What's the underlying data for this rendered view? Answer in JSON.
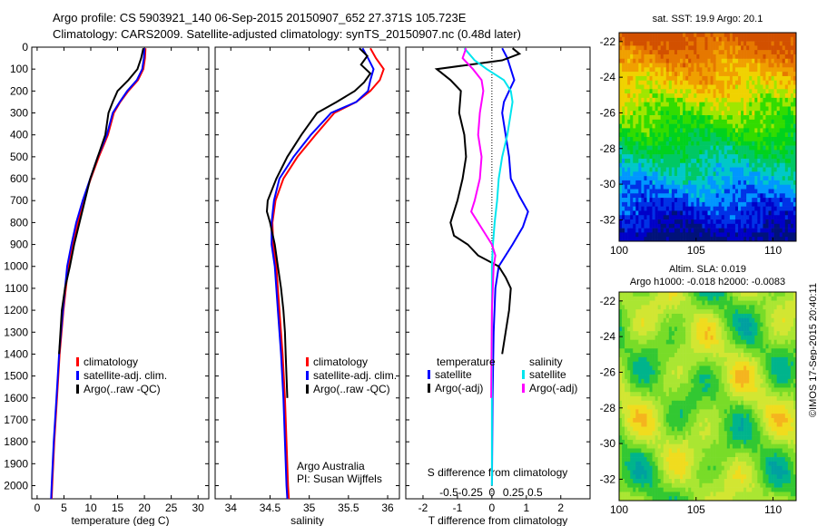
{
  "header": {
    "line1": "Argo profile: CS 5903921_140 06-Sep-2015 20150907_652 27.371S 105.723E",
    "line2": "Climatology: CARS2009. Satellite-adjusted climatology: synTS_20150907.nc (0.48d later)"
  },
  "credit": "©IMOS 17-Sep-2015 20:40:11",
  "colors": {
    "climatology": "#ff0000",
    "satellite": "#0000ff",
    "argo": "#000000",
    "sat_salt": "#00e5ee",
    "argo_salt": "#ff00ff"
  },
  "depth_axis": {
    "ticks": [
      0,
      100,
      200,
      300,
      400,
      500,
      600,
      700,
      800,
      900,
      1000,
      1100,
      1200,
      1300,
      1400,
      1500,
      1600,
      1700,
      1800,
      1900,
      2000
    ],
    "ylim": [
      0,
      2060
    ]
  },
  "chart_data": [
    {
      "type": "line",
      "id": "temp",
      "xlabel": "temperature (deg C)",
      "xticks": [
        "0",
        "5",
        "10",
        "15",
        "20",
        "25",
        "30"
      ],
      "xtick_values": [
        0,
        5,
        10,
        15,
        20,
        25,
        30
      ],
      "xlim": [
        -1,
        32
      ],
      "legend": [
        "climatology",
        "satellite-adj. clim.",
        "Argo(..raw -QC)"
      ],
      "series": [
        {
          "name": "climatology",
          "color": "#ff0000",
          "points": [
            [
              20.2,
              5
            ],
            [
              20.1,
              50
            ],
            [
              19.8,
              100
            ],
            [
              18.8,
              150
            ],
            [
              17,
              200
            ],
            [
              15.5,
              250
            ],
            [
              14.3,
              300
            ],
            [
              13.2,
              400
            ],
            [
              11.5,
              500
            ],
            [
              10,
              600
            ],
            [
              8.6,
              700
            ],
            [
              7.6,
              800
            ],
            [
              6.7,
              900
            ],
            [
              5.8,
              1000
            ],
            [
              4.9,
              1200
            ],
            [
              4.2,
              1400
            ],
            [
              3.7,
              1600
            ],
            [
              3.2,
              1800
            ],
            [
              2.8,
              2000
            ],
            [
              2.7,
              2060
            ]
          ]
        },
        {
          "name": "satellite-adj. clim.",
          "color": "#0000ff",
          "points": [
            [
              20,
              5
            ],
            [
              19.9,
              50
            ],
            [
              19.6,
              100
            ],
            [
              18.6,
              150
            ],
            [
              16.8,
              200
            ],
            [
              15.4,
              250
            ],
            [
              14.1,
              300
            ],
            [
              13,
              400
            ],
            [
              11.3,
              500
            ],
            [
              9.9,
              600
            ],
            [
              8.5,
              700
            ],
            [
              7.3,
              800
            ],
            [
              6.4,
              900
            ],
            [
              5.6,
              1000
            ],
            [
              4.8,
              1200
            ],
            [
              4.1,
              1400
            ],
            [
              3.6,
              1600
            ],
            [
              3.1,
              1800
            ],
            [
              2.7,
              2000
            ],
            [
              2.6,
              2060
            ]
          ]
        },
        {
          "name": "Argo(..raw -QC)",
          "color": "#000000",
          "points": [
            [
              19.8,
              5
            ],
            [
              19.4,
              50
            ],
            [
              18.7,
              100
            ],
            [
              17,
              150
            ],
            [
              15,
              200
            ],
            [
              14.1,
              250
            ],
            [
              13.3,
              300
            ],
            [
              12.7,
              400
            ],
            [
              11.3,
              500
            ],
            [
              9.9,
              600
            ],
            [
              8.9,
              700
            ],
            [
              7.9,
              800
            ],
            [
              6.9,
              900
            ],
            [
              6.1,
              1000
            ],
            [
              5.2,
              1100
            ],
            [
              4.6,
              1200
            ],
            [
              4.1,
              1400
            ]
          ]
        }
      ]
    },
    {
      "type": "line",
      "id": "salt",
      "xlabel": "salinity",
      "xticks": [
        "34",
        "34.5",
        "35",
        "35.5",
        "36"
      ],
      "xtick_values": [
        34,
        34.5,
        35,
        35.5,
        36
      ],
      "xlim": [
        33.8,
        36.15
      ],
      "legend": [
        "climatology",
        "satellite-adj. clim.",
        "Argo(..raw -QC)"
      ],
      "note": [
        "Argo Australia",
        "PI: Susan Wijffels"
      ],
      "series": [
        {
          "name": "climatology",
          "color": "#ff0000",
          "points": [
            [
              35.78,
              5
            ],
            [
              35.85,
              50
            ],
            [
              35.95,
              100
            ],
            [
              35.9,
              150
            ],
            [
              35.78,
              200
            ],
            [
              35.6,
              250
            ],
            [
              35.32,
              300
            ],
            [
              35.08,
              400
            ],
            [
              34.85,
              500
            ],
            [
              34.67,
              600
            ],
            [
              34.57,
              700
            ],
            [
              34.53,
              800
            ],
            [
              34.54,
              900
            ],
            [
              34.58,
              1000
            ],
            [
              34.62,
              1200
            ],
            [
              34.66,
              1400
            ],
            [
              34.69,
              1600
            ],
            [
              34.71,
              1800
            ],
            [
              34.73,
              2000
            ],
            [
              34.74,
              2060
            ]
          ]
        },
        {
          "name": "satellite-adj. clim.",
          "color": "#0000ff",
          "points": [
            [
              35.68,
              5
            ],
            [
              35.75,
              50
            ],
            [
              35.82,
              100
            ],
            [
              35.78,
              150
            ],
            [
              35.75,
              200
            ],
            [
              35.6,
              250
            ],
            [
              35.28,
              300
            ],
            [
              35.02,
              400
            ],
            [
              34.8,
              500
            ],
            [
              34.62,
              600
            ],
            [
              34.55,
              700
            ],
            [
              34.52,
              800
            ],
            [
              34.52,
              900
            ],
            [
              34.56,
              1000
            ],
            [
              34.6,
              1200
            ],
            [
              34.64,
              1400
            ],
            [
              34.67,
              1600
            ],
            [
              34.69,
              1800
            ],
            [
              34.71,
              2000
            ],
            [
              34.72,
              2060
            ]
          ]
        },
        {
          "name": "Argo(..raw -QC)",
          "color": "#000000",
          "points": [
            [
              35.64,
              5
            ],
            [
              35.74,
              40
            ],
            [
              35.66,
              80
            ],
            [
              35.78,
              120
            ],
            [
              35.7,
              160
            ],
            [
              35.58,
              200
            ],
            [
              35.35,
              250
            ],
            [
              35.1,
              300
            ],
            [
              34.9,
              400
            ],
            [
              34.72,
              500
            ],
            [
              34.58,
              600
            ],
            [
              34.47,
              700
            ],
            [
              34.46,
              750
            ],
            [
              34.5,
              800
            ],
            [
              34.56,
              900
            ],
            [
              34.6,
              1000
            ],
            [
              34.64,
              1100
            ],
            [
              34.67,
              1200
            ],
            [
              34.69,
              1300
            ],
            [
              34.7,
              1400
            ],
            [
              34.71,
              1500
            ],
            [
              34.72,
              1600
            ]
          ]
        }
      ]
    },
    {
      "type": "line",
      "id": "diff",
      "xlabel": "T difference from climatology",
      "top_label": "S difference from climatology",
      "xticks": [
        "-2",
        "-1",
        "0",
        "1",
        "2"
      ],
      "xtick_values": [
        -2,
        -1,
        0,
        1,
        2
      ],
      "xlim": [
        -2.5,
        2.85
      ],
      "sticks": [
        "-0.5",
        "-0.25",
        "0",
        "0.25",
        "0.5"
      ],
      "stick_values": [
        -0.5,
        -0.25,
        0,
        0.25,
        0.5
      ],
      "legend_headers": [
        "temperature",
        "salinity"
      ],
      "legend_left": [
        "satellite",
        "Argo(-adj)"
      ],
      "legend_right": [
        "satellite",
        "Argo(-adj)"
      ],
      "series": [
        {
          "name": "satellite",
          "color": "#0000ff",
          "points": [
            [
              0.3,
              5
            ],
            [
              0.45,
              50
            ],
            [
              0.55,
              100
            ],
            [
              0.65,
              150
            ],
            [
              0.5,
              200
            ],
            [
              0.35,
              250
            ],
            [
              0.3,
              300
            ],
            [
              0.4,
              400
            ],
            [
              0.5,
              500
            ],
            [
              0.55,
              600
            ],
            [
              0.8,
              680
            ],
            [
              1.05,
              750
            ],
            [
              0.9,
              820
            ],
            [
              0.6,
              900
            ],
            [
              0.2,
              1000
            ],
            [
              0.1,
              1100
            ],
            [
              0.05,
              1300
            ],
            [
              0.02,
              1600
            ],
            [
              0,
              2000
            ]
          ]
        },
        {
          "name": "Argo(-adj)",
          "color": "#000000",
          "points": [
            [
              0.6,
              5
            ],
            [
              0.8,
              30
            ],
            [
              0.3,
              60
            ],
            [
              -1.6,
              100
            ],
            [
              -1.2,
              150
            ],
            [
              -0.9,
              200
            ],
            [
              -0.95,
              300
            ],
            [
              -0.8,
              400
            ],
            [
              -0.75,
              500
            ],
            [
              -0.85,
              600
            ],
            [
              -1,
              700
            ],
            [
              -1.2,
              800
            ],
            [
              -1.1,
              860
            ],
            [
              -0.7,
              900
            ],
            [
              -0.4,
              950
            ],
            [
              0.2,
              1000
            ],
            [
              0.4,
              1050
            ],
            [
              0.55,
              1100
            ],
            [
              0.5,
              1200
            ],
            [
              0.4,
              1300
            ],
            [
              0.3,
              1400
            ]
          ]
        },
        {
          "name": "satellite",
          "color": "#00e5ee",
          "points": [
            [
              -0.8,
              5
            ],
            [
              -0.5,
              60
            ],
            [
              -0.15,
              100
            ],
            [
              0.35,
              150
            ],
            [
              0.55,
              200
            ],
            [
              0.6,
              250
            ],
            [
              0.55,
              300
            ],
            [
              0.45,
              400
            ],
            [
              0.3,
              500
            ],
            [
              0.2,
              600
            ],
            [
              0.15,
              700
            ],
            [
              0.08,
              800
            ],
            [
              0.03,
              900
            ],
            [
              0,
              1000
            ],
            [
              0,
              2000
            ]
          ]
        },
        {
          "name": "Argo(-adj)",
          "color": "#ff00ff",
          "points": [
            [
              -0.75,
              5
            ],
            [
              -0.85,
              50
            ],
            [
              -0.55,
              100
            ],
            [
              -0.3,
              150
            ],
            [
              -0.25,
              200
            ],
            [
              -0.35,
              300
            ],
            [
              -0.4,
              400
            ],
            [
              -0.3,
              500
            ],
            [
              -0.35,
              600
            ],
            [
              -0.5,
              700
            ],
            [
              -0.6,
              750
            ],
            [
              -0.4,
              800
            ],
            [
              -0.2,
              850
            ],
            [
              0,
              900
            ],
            [
              0.1,
              950
            ],
            [
              0.05,
              1000
            ],
            [
              0,
              1200
            ],
            [
              -0.02,
              1600
            ]
          ]
        }
      ]
    },
    {
      "type": "heatmap",
      "id": "sst",
      "title": "sat. SST: 19.9 Argo: 20.1",
      "xticks": [
        "100",
        "105",
        "110"
      ],
      "xtick_values": [
        100,
        105,
        110
      ],
      "xlim": [
        100,
        111.5
      ],
      "yticks": [
        "-22",
        "-24",
        "-26",
        "-28",
        "-30",
        "-32"
      ],
      "ytick_values": [
        -22,
        -24,
        -26,
        -28,
        -30,
        -32
      ],
      "ylim": [
        -33.2,
        -21.5
      ]
    },
    {
      "type": "heatmap",
      "id": "sla",
      "title": "Altim. SLA: 0.019",
      "subtitle": "Argo h1000: -0.018 h2000: -0.0083",
      "xticks": [
        "100",
        "105",
        "110"
      ],
      "xtick_values": [
        100,
        105,
        110
      ],
      "xlim": [
        100,
        111.5
      ],
      "yticks": [
        "-22",
        "-24",
        "-26",
        "-28",
        "-30",
        "-32"
      ],
      "ytick_values": [
        -22,
        -24,
        -26,
        -28,
        -30,
        -32
      ],
      "ylim": [
        -33.2,
        -21.5
      ]
    }
  ]
}
